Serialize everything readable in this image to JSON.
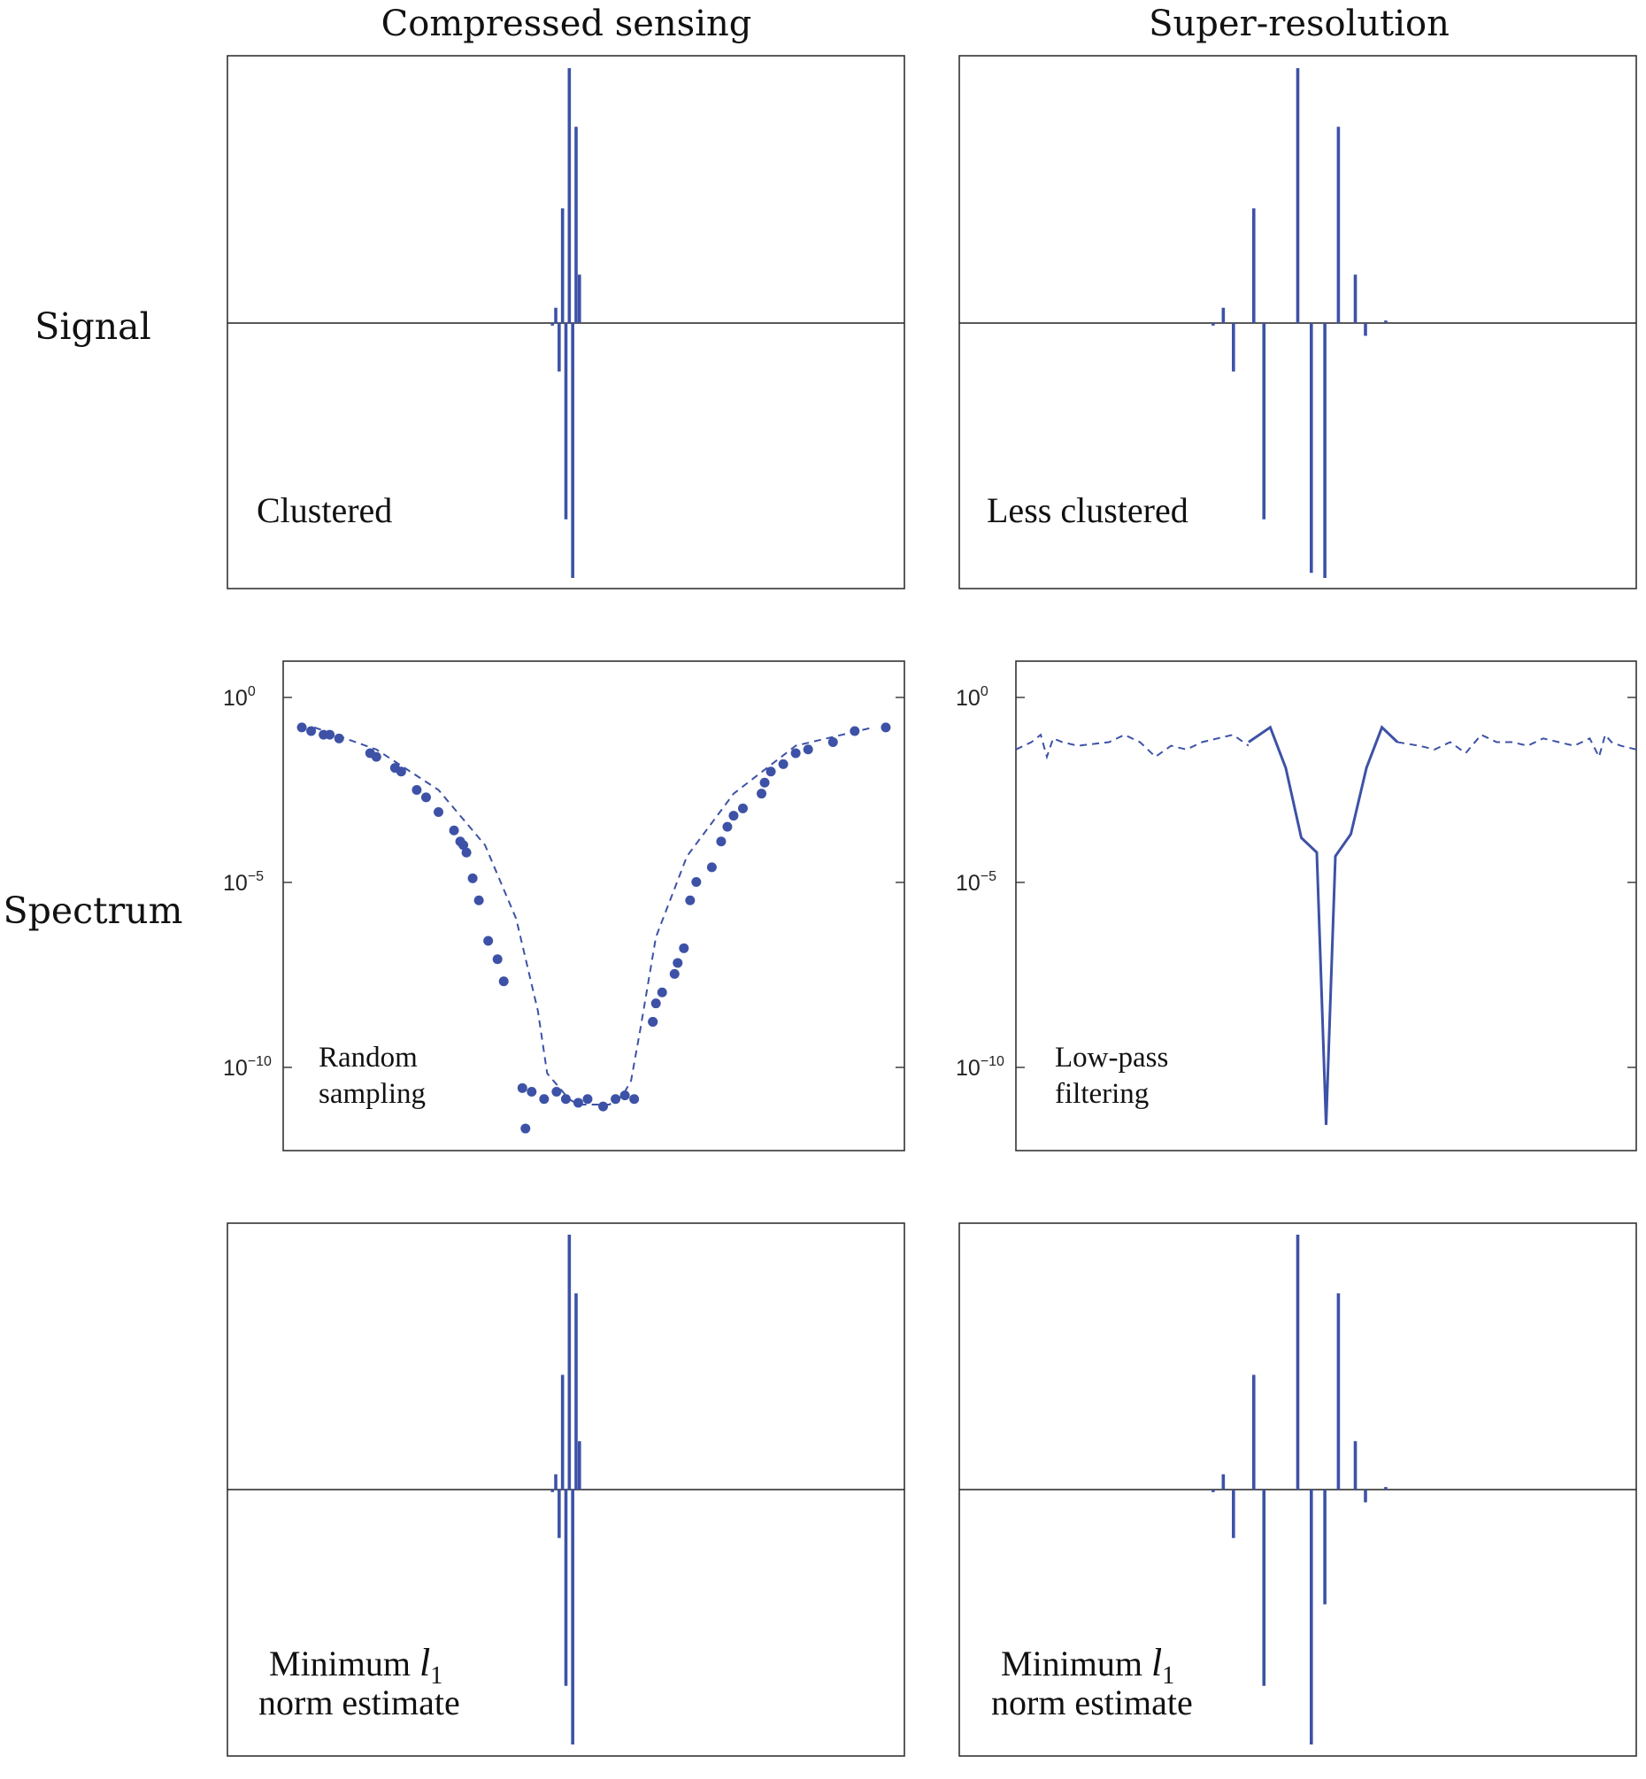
{
  "colors": {
    "series": "#3d52a6",
    "axis": "#333333"
  },
  "column_titles": [
    "Compressed sensing",
    "Super-resolution"
  ],
  "row_titles": [
    "Signal",
    "Spectrum",
    ""
  ],
  "annotations": {
    "cs_signal": "Clustered",
    "sr_signal": "Less clustered",
    "cs_spectrum_line1": "Random",
    "cs_spectrum_line2": "sampling",
    "sr_spectrum_line1": "Low-pass",
    "sr_spectrum_line2": "filtering",
    "estimate_line1_text": "Minimum ",
    "estimate_line1_symbol": "l",
    "estimate_line1_subscript": "1",
    "estimate_line2": "norm estimate"
  },
  "chart_data": [
    {
      "id": "cs_signal",
      "type": "stem",
      "title": "",
      "xlabel": "",
      "ylabel": "",
      "xlim": [
        -1,
        1
      ],
      "ylim": [
        -1,
        1
      ],
      "grid": false,
      "x": [
        -0.04,
        -0.03,
        -0.02,
        -0.01,
        0.0,
        0.01,
        0.02,
        0.03,
        0.04
      ],
      "values": [
        -0.01,
        0.06,
        -0.19,
        0.45,
        -0.77,
        1.0,
        -1.0,
        0.77,
        0.19
      ]
    },
    {
      "id": "sr_signal",
      "type": "stem",
      "title": "",
      "xlabel": "",
      "ylabel": "",
      "xlim": [
        -1,
        1
      ],
      "ylim": [
        -1,
        1
      ],
      "grid": false,
      "x": [
        -0.25,
        -0.22,
        -0.19,
        -0.13,
        -0.1,
        0.0,
        0.04,
        0.08,
        0.12,
        0.17,
        0.2,
        0.26
      ],
      "values": [
        -0.01,
        0.06,
        -0.19,
        0.45,
        -0.77,
        1.0,
        -0.98,
        -1.0,
        0.77,
        0.19,
        -0.05,
        0.01
      ]
    },
    {
      "id": "cs_spectrum",
      "type": "scatter",
      "title": "",
      "xlabel": "",
      "ylabel": "",
      "yscale": "log",
      "xlim": [
        -1,
        1
      ],
      "ylim_exp": [
        -12.3,
        1
      ],
      "grid": false,
      "yticks": [
        "10^0",
        "10^-5",
        "10^-10"
      ],
      "series": [
        {
          "style": "dashed",
          "x": [
            -0.9,
            -0.7,
            -0.5,
            -0.35,
            -0.25,
            -0.18,
            -0.15,
            -0.12,
            -0.1,
            -0.08,
            -0.06,
            -0.05,
            0.05,
            0.06,
            0.08,
            0.1,
            0.12,
            0.15,
            0.2,
            0.3,
            0.45,
            0.65,
            0.9
          ],
          "values_exp": [
            -0.8,
            -1.4,
            -2.5,
            -4.0,
            -6.0,
            -8.5,
            -10.2,
            -10.5,
            -10.7,
            -10.9,
            -11.0,
            -11.05,
            -11.05,
            -11.0,
            -10.9,
            -10.7,
            -10.4,
            -9.0,
            -6.5,
            -4.3,
            -2.6,
            -1.3,
            -0.8
          ]
        }
      ],
      "points": {
        "x": [
          -0.94,
          -0.91,
          -0.87,
          -0.85,
          -0.82,
          -0.72,
          -0.7,
          -0.64,
          -0.62,
          -0.57,
          -0.54,
          -0.5,
          -0.45,
          -0.43,
          -0.42,
          -0.41,
          -0.39,
          -0.37,
          -0.34,
          -0.31,
          -0.29,
          -0.23,
          -0.22,
          -0.2,
          -0.16,
          -0.12,
          -0.09,
          -0.05,
          -0.02,
          0.03,
          0.07,
          0.1,
          0.13,
          0.19,
          0.19,
          0.2,
          0.22,
          0.26,
          0.27,
          0.29,
          0.31,
          0.33,
          0.38,
          0.41,
          0.43,
          0.45,
          0.48,
          0.54,
          0.55,
          0.57,
          0.61,
          0.65,
          0.69,
          0.77,
          0.84,
          0.94
        ],
        "values_exp": [
          -0.8,
          -0.9,
          -1.0,
          -1.0,
          -1.1,
          -1.5,
          -1.6,
          -1.9,
          -2.0,
          -2.5,
          -2.7,
          -3.1,
          -3.6,
          -3.9,
          -4.0,
          -4.2,
          -4.9,
          -5.5,
          -6.6,
          -7.1,
          -7.7,
          -10.6,
          -11.7,
          -10.7,
          -10.9,
          -10.7,
          -10.9,
          -11.0,
          -10.9,
          -11.1,
          -10.9,
          -10.8,
          -10.9,
          -8.8,
          -8.8,
          -8.3,
          -8.0,
          -7.5,
          -7.2,
          -6.8,
          -5.5,
          -5.0,
          -4.6,
          -3.9,
          -3.5,
          -3.2,
          -3.0,
          -2.6,
          -2.3,
          -2.0,
          -1.8,
          -1.5,
          -1.4,
          -1.2,
          -0.9,
          -0.8
        ]
      },
      "annotation": "Random sampling"
    },
    {
      "id": "sr_spectrum",
      "type": "line",
      "title": "",
      "xlabel": "",
      "ylabel": "",
      "yscale": "log",
      "xlim": [
        -1,
        1
      ],
      "ylim_exp": [
        -12.3,
        1
      ],
      "grid": false,
      "yticks": [
        "10^0",
        "10^-5",
        "10^-10"
      ],
      "series": [
        {
          "style": "dashed",
          "x": [
            -1.0,
            -0.95,
            -0.92,
            -0.9,
            -0.88,
            -0.85,
            -0.8,
            -0.7,
            -0.65,
            -0.6,
            -0.55,
            -0.5,
            -0.45,
            -0.4,
            -0.35,
            -0.3,
            -0.25
          ],
          "values_exp": [
            -1.4,
            -1.2,
            -1.0,
            -1.6,
            -1.1,
            -1.2,
            -1.3,
            -1.2,
            -1.0,
            -1.2,
            -1.6,
            -1.3,
            -1.4,
            -1.2,
            -1.1,
            -1.0,
            -1.3
          ]
        },
        {
          "style": "solid",
          "x": [
            -0.25,
            -0.18,
            -0.13,
            -0.08,
            -0.03,
            0.0,
            0.03,
            0.08,
            0.13,
            0.18,
            0.23
          ],
          "values_exp": [
            -1.2,
            -0.8,
            -1.9,
            -3.8,
            -4.2,
            -11.6,
            -4.3,
            -3.7,
            -1.9,
            -0.8,
            -1.2
          ]
        },
        {
          "style": "dashed",
          "x": [
            0.23,
            0.3,
            0.35,
            0.4,
            0.45,
            0.5,
            0.55,
            0.6,
            0.65,
            0.7,
            0.75,
            0.8,
            0.85,
            0.88,
            0.9,
            0.92,
            0.95,
            1.0
          ],
          "values_exp": [
            -1.2,
            -1.3,
            -1.4,
            -1.2,
            -1.5,
            -1.0,
            -1.2,
            -1.2,
            -1.3,
            -1.1,
            -1.2,
            -1.3,
            -1.1,
            -1.6,
            -1.0,
            -1.2,
            -1.3,
            -1.4
          ]
        }
      ],
      "annotation": "Low-pass filtering"
    },
    {
      "id": "cs_estimate",
      "type": "stem",
      "title": "",
      "xlabel": "",
      "ylabel": "",
      "xlim": [
        -1,
        1
      ],
      "ylim": [
        -1,
        1
      ],
      "grid": false,
      "x": [
        -0.04,
        -0.03,
        -0.02,
        -0.01,
        0.0,
        0.01,
        0.02,
        0.03,
        0.04
      ],
      "values": [
        -0.01,
        0.06,
        -0.19,
        0.45,
        -0.77,
        1.0,
        -1.0,
        0.77,
        0.19
      ]
    },
    {
      "id": "sr_estimate",
      "type": "stem",
      "title": "",
      "xlabel": "",
      "ylabel": "",
      "xlim": [
        -1,
        1
      ],
      "ylim": [
        -1,
        1
      ],
      "grid": false,
      "x": [
        -0.25,
        -0.22,
        -0.19,
        -0.13,
        -0.1,
        0.0,
        0.04,
        0.08,
        0.12,
        0.17,
        0.2,
        0.26
      ],
      "values": [
        -0.01,
        0.06,
        -0.19,
        0.45,
        -0.77,
        1.0,
        -1.0,
        -0.45,
        0.77,
        0.19,
        -0.05,
        0.01
      ]
    }
  ]
}
